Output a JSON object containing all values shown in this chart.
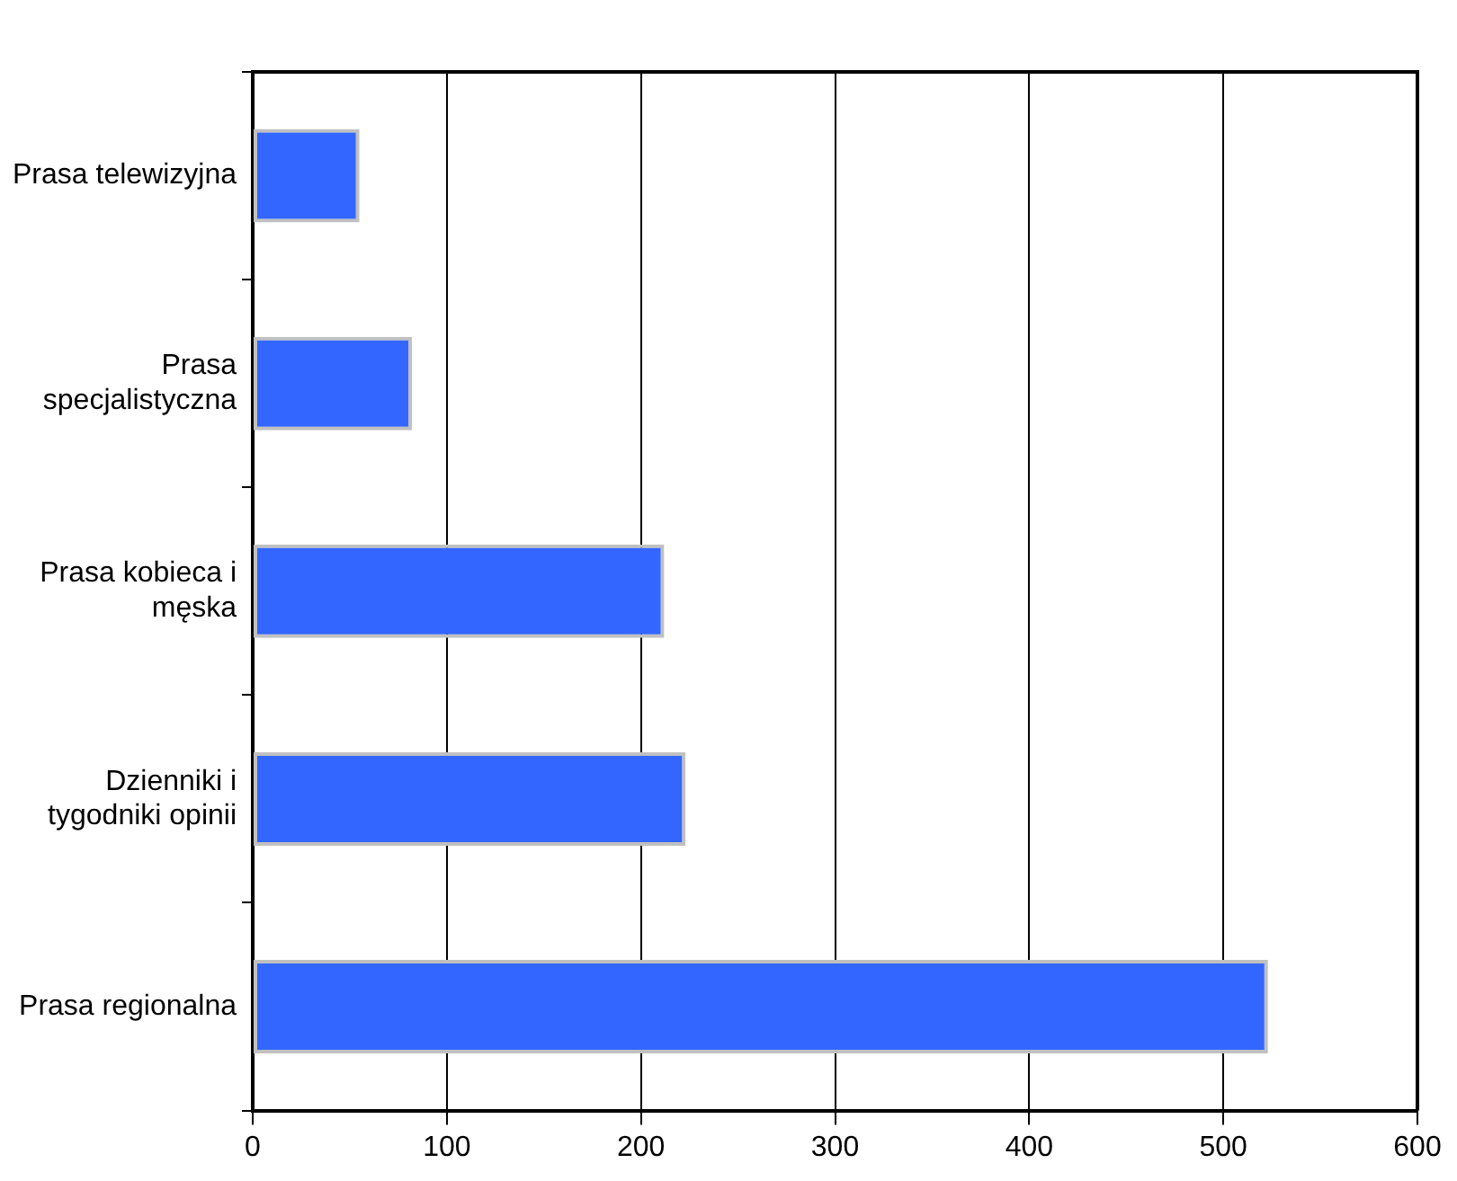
{
  "chart_data": {
    "type": "bar",
    "orientation": "horizontal",
    "categories": [
      "Prasa telewizyjna",
      "Prasa specjalistyczna",
      "Prasa kobieca i męska",
      "Dzienniki i tygodniki opinii",
      "Prasa regionalna"
    ],
    "values": [
      55,
      82,
      212,
      223,
      523
    ],
    "color": "#3366ff",
    "xlim": [
      0,
      600
    ],
    "xticks": [
      0,
      100,
      200,
      300,
      400,
      500,
      600
    ],
    "grid": "x"
  }
}
